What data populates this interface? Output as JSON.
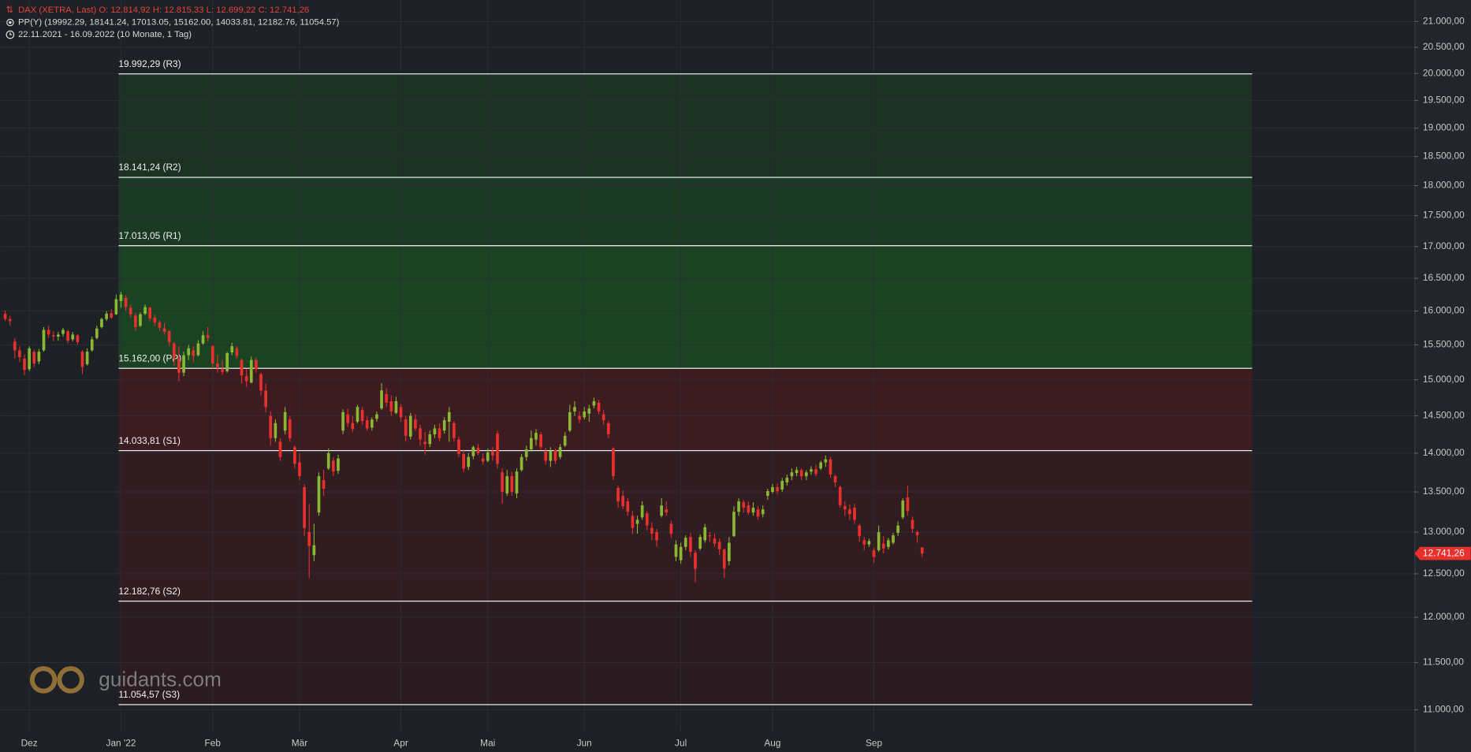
{
  "chart_data": {
    "type": "candlestick",
    "header": {
      "instrument": "DAX (XETRA, Last)  O: 12.814,92  H: 12.815,33  L: 12.699,22  C: 12.741,26",
      "indicator": "PP(Y)  (19992.29, 18141.24, 17013.05, 15162.00, 14033.81, 12182.76, 11054.57)",
      "range": "22.11.2021 - 16.09.2022   (10 Monate, 1 Tag)"
    },
    "watermark": "guidants.com",
    "log_scale": true,
    "grid": true,
    "up_color": "#8ab833",
    "down_color": "#e8302c",
    "ylim": [
      10780,
      21430
    ],
    "yticks": [
      {
        "value": 11000,
        "label": "11.000,00"
      },
      {
        "value": 11500,
        "label": "11.500,00"
      },
      {
        "value": 12000,
        "label": "12.000,00"
      },
      {
        "value": 12500,
        "label": "12.500,00"
      },
      {
        "value": 13000,
        "label": "13.000,00"
      },
      {
        "value": 13500,
        "label": "13.500,00"
      },
      {
        "value": 14000,
        "label": "14.000,00"
      },
      {
        "value": 14500,
        "label": "14.500,00"
      },
      {
        "value": 15000,
        "label": "15.000,00"
      },
      {
        "value": 15500,
        "label": "15.500,00"
      },
      {
        "value": 16000,
        "label": "16.000,00"
      },
      {
        "value": 16500,
        "label": "16.500,00"
      },
      {
        "value": 17000,
        "label": "17.000,00"
      },
      {
        "value": 17500,
        "label": "17.500,00"
      },
      {
        "value": 18000,
        "label": "18.000,00"
      },
      {
        "value": 18500,
        "label": "18.500,00"
      },
      {
        "value": 19000,
        "label": "19.000,00"
      },
      {
        "value": 19500,
        "label": "19.500,00"
      },
      {
        "value": 20000,
        "label": "20.000,00"
      },
      {
        "value": 20500,
        "label": "20.500,00"
      },
      {
        "value": 21000,
        "label": "21.000,00"
      }
    ],
    "xlim": [
      -1,
      292
    ],
    "xticks": [
      {
        "value": 5,
        "label": "Dez"
      },
      {
        "value": 24,
        "label": "Jan '22"
      },
      {
        "value": 43,
        "label": "Feb"
      },
      {
        "value": 61,
        "label": "Mär"
      },
      {
        "value": 82,
        "label": "Apr"
      },
      {
        "value": 100,
        "label": "Mai"
      },
      {
        "value": 120,
        "label": "Jun"
      },
      {
        "value": 140,
        "label": "Jul"
      },
      {
        "value": 159,
        "label": "Aug"
      },
      {
        "value": 180,
        "label": "Sep"
      }
    ],
    "last_price": {
      "value": 12741.26,
      "label": "12.741,26",
      "color": "#e8302c"
    },
    "pivots": [
      {
        "value": 19992.29,
        "label": "19.992,29 (R3)"
      },
      {
        "value": 18141.24,
        "label": "18.141,24 (R2)"
      },
      {
        "value": 17013.05,
        "label": "17.013,05 (R1)"
      },
      {
        "value": 15162.0,
        "label": "15.162,00 (PP)"
      },
      {
        "value": 14033.81,
        "label": "14.033,81 (S1)"
      },
      {
        "value": 12182.76,
        "label": "12.182,76 (S2)"
      },
      {
        "value": 11054.57,
        "label": "11.054,57 (S3)"
      }
    ],
    "band_colors": [
      "#1c3024",
      "#1b3a24",
      "#1b4323",
      "#3c1b21",
      "#301c21",
      "#2a1c20"
    ],
    "candles": [
      [
        15960,
        16010,
        15850,
        15880
      ],
      [
        15880,
        15930,
        15780,
        15850
      ],
      [
        15550,
        15600,
        15300,
        15420
      ],
      [
        15420,
        15480,
        15250,
        15320
      ],
      [
        15300,
        15360,
        15060,
        15140
      ],
      [
        15150,
        15480,
        15120,
        15450
      ],
      [
        15400,
        15430,
        15180,
        15230
      ],
      [
        15260,
        15440,
        15220,
        15400
      ],
      [
        15420,
        15760,
        15400,
        15720
      ],
      [
        15720,
        15780,
        15600,
        15650
      ],
      [
        15640,
        15700,
        15550,
        15620
      ],
      [
        15620,
        15690,
        15560,
        15650
      ],
      [
        15660,
        15750,
        15620,
        15720
      ],
      [
        15700,
        15720,
        15520,
        15560
      ],
      [
        15580,
        15690,
        15550,
        15650
      ],
      [
        15640,
        15660,
        15500,
        15540
      ],
      [
        15400,
        15420,
        15080,
        15180
      ],
      [
        15220,
        15450,
        15200,
        15400
      ],
      [
        15420,
        15620,
        15400,
        15580
      ],
      [
        15600,
        15780,
        15580,
        15740
      ],
      [
        15760,
        15900,
        15740,
        15880
      ],
      [
        15880,
        16000,
        15850,
        15960
      ],
      [
        15970,
        16030,
        15880,
        15900
      ],
      [
        15950,
        16250,
        15940,
        16180
      ],
      [
        16150,
        16290,
        16050,
        16250
      ],
      [
        16200,
        16240,
        16000,
        16060
      ],
      [
        16050,
        16100,
        15900,
        15950
      ],
      [
        15930,
        15970,
        15700,
        15760
      ],
      [
        15780,
        15980,
        15760,
        15950
      ],
      [
        15960,
        16100,
        15940,
        16060
      ],
      [
        16050,
        16070,
        15850,
        15890
      ],
      [
        15900,
        15950,
        15780,
        15830
      ],
      [
        15830,
        15860,
        15700,
        15750
      ],
      [
        15740,
        15820,
        15650,
        15690
      ],
      [
        15700,
        15720,
        15480,
        15540
      ],
      [
        15520,
        15540,
        15200,
        15300
      ],
      [
        15300,
        15480,
        14980,
        15100
      ],
      [
        15100,
        15400,
        15050,
        15350
      ],
      [
        15350,
        15500,
        15280,
        15450
      ],
      [
        15420,
        15480,
        15250,
        15340
      ],
      [
        15350,
        15570,
        15330,
        15520
      ],
      [
        15520,
        15700,
        15500,
        15640
      ],
      [
        15640,
        15760,
        15550,
        15600
      ],
      [
        15480,
        15500,
        15160,
        15230
      ],
      [
        15230,
        15360,
        15100,
        15180
      ],
      [
        15150,
        15280,
        15070,
        15110
      ],
      [
        15120,
        15400,
        15100,
        15380
      ],
      [
        15390,
        15530,
        15350,
        15480
      ],
      [
        15450,
        15480,
        15300,
        15340
      ],
      [
        15280,
        15300,
        14950,
        15060
      ],
      [
        15050,
        15150,
        14900,
        14980
      ],
      [
        14960,
        15330,
        14950,
        15280
      ],
      [
        15280,
        15320,
        15100,
        15150
      ],
      [
        15080,
        15100,
        14780,
        14850
      ],
      [
        14850,
        14950,
        14550,
        14620
      ],
      [
        14500,
        14560,
        14100,
        14200
      ],
      [
        14200,
        14450,
        14150,
        14400
      ],
      [
        14150,
        14200,
        13900,
        13950
      ],
      [
        14300,
        14620,
        14250,
        14550
      ],
      [
        14450,
        14500,
        14150,
        14200
      ],
      [
        14080,
        14100,
        13800,
        13860
      ],
      [
        13880,
        14000,
        13650,
        13700
      ],
      [
        13560,
        13600,
        12950,
        13050
      ],
      [
        13000,
        13350,
        12450,
        12830
      ],
      [
        12720,
        13100,
        12650,
        12840
      ],
      [
        13240,
        13750,
        13200,
        13700
      ],
      [
        13650,
        13780,
        13450,
        13540
      ],
      [
        13800,
        14060,
        13780,
        14000
      ],
      [
        13900,
        13950,
        13700,
        13760
      ],
      [
        13770,
        13980,
        13730,
        13930
      ],
      [
        14300,
        14590,
        14250,
        14550
      ],
      [
        14520,
        14600,
        14350,
        14400
      ],
      [
        14400,
        14500,
        14280,
        14320
      ],
      [
        14420,
        14650,
        14400,
        14620
      ],
      [
        14580,
        14620,
        14380,
        14430
      ],
      [
        14440,
        14500,
        14300,
        14330
      ],
      [
        14340,
        14480,
        14300,
        14450
      ],
      [
        14460,
        14560,
        14420,
        14520
      ],
      [
        14600,
        14950,
        14580,
        14850
      ],
      [
        14800,
        14880,
        14620,
        14680
      ],
      [
        14700,
        14780,
        14500,
        14560
      ],
      [
        14540,
        14760,
        14520,
        14700
      ],
      [
        14620,
        14660,
        14420,
        14480
      ],
      [
        14450,
        14500,
        14150,
        14230
      ],
      [
        14220,
        14540,
        14180,
        14500
      ],
      [
        14450,
        14520,
        14300,
        14330
      ],
      [
        14330,
        14380,
        14100,
        14180
      ],
      [
        14150,
        14280,
        13980,
        14120
      ],
      [
        14120,
        14300,
        14080,
        14250
      ],
      [
        14250,
        14380,
        14200,
        14330
      ],
      [
        14330,
        14400,
        14160,
        14200
      ],
      [
        14300,
        14480,
        14260,
        14440
      ],
      [
        14420,
        14620,
        14150,
        14550
      ],
      [
        14400,
        14430,
        14150,
        14200
      ],
      [
        14180,
        14220,
        13950,
        13990
      ],
      [
        13990,
        14050,
        13750,
        13800
      ],
      [
        13820,
        14000,
        13780,
        13950
      ],
      [
        13960,
        14100,
        13920,
        14080
      ],
      [
        14070,
        14120,
        13970,
        14000
      ],
      [
        13930,
        14000,
        13850,
        13890
      ],
      [
        13900,
        14060,
        13880,
        14010
      ],
      [
        14020,
        14080,
        13900,
        13970
      ],
      [
        14260,
        14300,
        13800,
        13860
      ],
      [
        13750,
        13800,
        13350,
        13500
      ],
      [
        13480,
        13780,
        13450,
        13700
      ],
      [
        13700,
        13760,
        13450,
        13500
      ],
      [
        13480,
        13800,
        13420,
        13760
      ],
      [
        13780,
        13990,
        13760,
        13950
      ],
      [
        13950,
        14100,
        13900,
        14050
      ],
      [
        14050,
        14300,
        14020,
        14200
      ],
      [
        14180,
        14320,
        14100,
        14270
      ],
      [
        14250,
        14280,
        14050,
        14080
      ],
      [
        14020,
        14070,
        13850,
        13900
      ],
      [
        13900,
        14080,
        13820,
        14030
      ],
      [
        14040,
        14060,
        13860,
        13900
      ],
      [
        13950,
        14120,
        13920,
        14080
      ],
      [
        14100,
        14280,
        14080,
        14230
      ],
      [
        14300,
        14650,
        14280,
        14550
      ],
      [
        14560,
        14700,
        14500,
        14620
      ],
      [
        14500,
        14560,
        14400,
        14450
      ],
      [
        14480,
        14620,
        14450,
        14560
      ],
      [
        14530,
        14650,
        14420,
        14600
      ],
      [
        14640,
        14750,
        14600,
        14700
      ],
      [
        14680,
        14720,
        14520,
        14560
      ],
      [
        14520,
        14580,
        14380,
        14440
      ],
      [
        14400,
        14430,
        14200,
        14250
      ],
      [
        14060,
        14080,
        13650,
        13700
      ],
      [
        13550,
        13580,
        13300,
        13380
      ],
      [
        13450,
        13520,
        13280,
        13320
      ],
      [
        13380,
        13420,
        13200,
        13250
      ],
      [
        13200,
        13260,
        12980,
        13050
      ],
      [
        13100,
        13200,
        12980,
        13150
      ],
      [
        13180,
        13380,
        13150,
        13330
      ],
      [
        13230,
        13260,
        13020,
        13080
      ],
      [
        13050,
        13120,
        12900,
        12980
      ],
      [
        13000,
        13040,
        12820,
        12900
      ],
      [
        13200,
        13420,
        13180,
        13330
      ],
      [
        13280,
        13380,
        13200,
        13240
      ],
      [
        13100,
        13140,
        12930,
        12980
      ],
      [
        12700,
        12900,
        12650,
        12850
      ],
      [
        12660,
        12870,
        12620,
        12820
      ],
      [
        12820,
        12960,
        12780,
        12930
      ],
      [
        12940,
        12990,
        12700,
        12760
      ],
      [
        12750,
        12780,
        12400,
        12560
      ],
      [
        12800,
        12970,
        12780,
        12940
      ],
      [
        12900,
        13100,
        12870,
        13060
      ],
      [
        12960,
        13000,
        12880,
        12950
      ],
      [
        12920,
        12980,
        12820,
        12860
      ],
      [
        12880,
        12920,
        12720,
        12790
      ],
      [
        12790,
        12800,
        12450,
        12560
      ],
      [
        12650,
        12940,
        12600,
        12870
      ],
      [
        12950,
        13320,
        12940,
        13250
      ],
      [
        13250,
        13420,
        13200,
        13380
      ],
      [
        13370,
        13400,
        13240,
        13300
      ],
      [
        13330,
        13380,
        13210,
        13240
      ],
      [
        13240,
        13370,
        13200,
        13300
      ],
      [
        13280,
        13320,
        13150,
        13190
      ],
      [
        13220,
        13330,
        13180,
        13280
      ],
      [
        13450,
        13540,
        13400,
        13510
      ],
      [
        13500,
        13600,
        13480,
        13560
      ],
      [
        13560,
        13610,
        13470,
        13510
      ],
      [
        13530,
        13680,
        13500,
        13640
      ],
      [
        13620,
        13720,
        13580,
        13680
      ],
      [
        13700,
        13800,
        13650,
        13750
      ],
      [
        13740,
        13820,
        13700,
        13780
      ],
      [
        13780,
        13800,
        13650,
        13700
      ],
      [
        13700,
        13780,
        13650,
        13750
      ],
      [
        13760,
        13830,
        13720,
        13790
      ],
      [
        13790,
        13850,
        13700,
        13730
      ],
      [
        13800,
        13900,
        13780,
        13880
      ],
      [
        13880,
        13970,
        13820,
        13920
      ],
      [
        13920,
        13950,
        13680,
        13720
      ],
      [
        13700,
        13720,
        13560,
        13620
      ],
      [
        13560,
        13580,
        13300,
        13330
      ],
      [
        13320,
        13380,
        13200,
        13280
      ],
      [
        13280,
        13340,
        13150,
        13220
      ],
      [
        13300,
        13350,
        13100,
        13150
      ],
      [
        13080,
        13100,
        12880,
        12950
      ],
      [
        12900,
        12940,
        12780,
        12850
      ],
      [
        12850,
        12920,
        12820,
        12890
      ],
      [
        12780,
        12810,
        12630,
        12700
      ],
      [
        12780,
        13080,
        12760,
        13000
      ],
      [
        12860,
        12950,
        12740,
        12800
      ],
      [
        12820,
        12930,
        12790,
        12900
      ],
      [
        12870,
        12990,
        12850,
        12960
      ],
      [
        12990,
        13130,
        12950,
        13080
      ],
      [
        13180,
        13420,
        13160,
        13390
      ],
      [
        13430,
        13580,
        13200,
        13260
      ],
      [
        13150,
        13190,
        12990,
        13040
      ],
      [
        13000,
        13020,
        12870,
        12960
      ],
      [
        12814.92,
        12815.33,
        12699.22,
        12741.26
      ]
    ]
  }
}
